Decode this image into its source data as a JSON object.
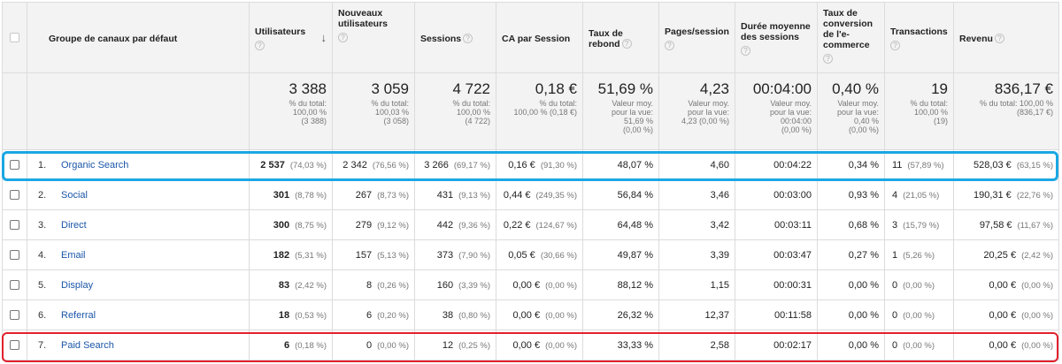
{
  "columns": {
    "dimension": "Groupe de canaux par défaut",
    "users": "Utilisateurs",
    "new_users": "Nouveaux utilisateurs",
    "sessions": "Sessions",
    "ca_session": "CA par Session",
    "bounce": "Taux de rebond",
    "pages": "Pages/session",
    "duration": "Durée moyenne des sessions",
    "conversion": "Taux de conversion de l'e-commerce",
    "transactions": "Transactions",
    "revenue": "Revenu"
  },
  "help_icon": "?",
  "sort_icon": "↓",
  "totals": {
    "users": {
      "value": "3 388",
      "sub": "% du total:\n100,00 %\n(3 388)"
    },
    "new_users": {
      "value": "3 059",
      "sub": "% du total:\n100,03 %\n(3 058)"
    },
    "sessions": {
      "value": "4 722",
      "sub": "% du total:\n100,00 %\n(4 722)"
    },
    "ca_session": {
      "value": "0,18 €",
      "sub": "% du total:\n100,00 % (0,18 €)"
    },
    "bounce": {
      "value": "51,69 %",
      "sub": "Valeur moy.\npour la vue:\n51,69 %\n(0,00 %)"
    },
    "pages": {
      "value": "4,23",
      "sub": "Valeur moy.\npour la vue:\n4,23 (0,00 %)"
    },
    "duration": {
      "value": "00:04:00",
      "sub": "Valeur moy.\npour la vue:\n00:04:00\n(0,00 %)"
    },
    "conversion": {
      "value": "0,40 %",
      "sub": "Valeur moy.\npour la vue:\n0,40 %\n(0,00 %)"
    },
    "transactions": {
      "value": "19",
      "sub": "% du total:\n100,00 %\n(19)"
    },
    "revenue": {
      "value": "836,17 €",
      "sub": "% du total: 100,00 %\n(836,17 €)"
    }
  },
  "rows": [
    {
      "rank": "1.",
      "channel": "Organic Search",
      "users": "2 537",
      "users_pct": "(74,03 %)",
      "new_users": "2 342",
      "new_users_pct": "(76,56 %)",
      "sessions": "3 266",
      "sessions_pct": "(69,17 %)",
      "ca": "0,16 €",
      "ca_pct": "(91,30 %)",
      "bounce": "48,07 %",
      "pages": "4,60",
      "duration": "00:04:22",
      "conversion": "0,34 %",
      "transactions": "11",
      "transactions_pct": "(57,89 %)",
      "revenue": "528,03 €",
      "revenue_pct": "(63,15 %)"
    },
    {
      "rank": "2.",
      "channel": "Social",
      "users": "301",
      "users_pct": "(8,78 %)",
      "new_users": "267",
      "new_users_pct": "(8,73 %)",
      "sessions": "431",
      "sessions_pct": "(9,13 %)",
      "ca": "0,44 €",
      "ca_pct": "(249,35 %)",
      "bounce": "56,84 %",
      "pages": "3,46",
      "duration": "00:03:00",
      "conversion": "0,93 %",
      "transactions": "4",
      "transactions_pct": "(21,05 %)",
      "revenue": "190,31 €",
      "revenue_pct": "(22,76 %)"
    },
    {
      "rank": "3.",
      "channel": "Direct",
      "users": "300",
      "users_pct": "(8,75 %)",
      "new_users": "279",
      "new_users_pct": "(9,12 %)",
      "sessions": "442",
      "sessions_pct": "(9,36 %)",
      "ca": "0,22 €",
      "ca_pct": "(124,67 %)",
      "bounce": "64,48 %",
      "pages": "3,42",
      "duration": "00:03:11",
      "conversion": "0,68 %",
      "transactions": "3",
      "transactions_pct": "(15,79 %)",
      "revenue": "97,58 €",
      "revenue_pct": "(11,67 %)"
    },
    {
      "rank": "4.",
      "channel": "Email",
      "users": "182",
      "users_pct": "(5,31 %)",
      "new_users": "157",
      "new_users_pct": "(5,13 %)",
      "sessions": "373",
      "sessions_pct": "(7,90 %)",
      "ca": "0,05 €",
      "ca_pct": "(30,66 %)",
      "bounce": "49,87 %",
      "pages": "3,39",
      "duration": "00:03:47",
      "conversion": "0,27 %",
      "transactions": "1",
      "transactions_pct": "(5,26 %)",
      "revenue": "20,25 €",
      "revenue_pct": "(2,42 %)"
    },
    {
      "rank": "5.",
      "channel": "Display",
      "users": "83",
      "users_pct": "(2,42 %)",
      "new_users": "8",
      "new_users_pct": "(0,26 %)",
      "sessions": "160",
      "sessions_pct": "(3,39 %)",
      "ca": "0,00 €",
      "ca_pct": "(0,00 %)",
      "bounce": "88,12 %",
      "pages": "1,15",
      "duration": "00:00:31",
      "conversion": "0,00 %",
      "transactions": "0",
      "transactions_pct": "(0,00 %)",
      "revenue": "0,00 €",
      "revenue_pct": "(0,00 %)"
    },
    {
      "rank": "6.",
      "channel": "Referral",
      "users": "18",
      "users_pct": "(0,53 %)",
      "new_users": "6",
      "new_users_pct": "(0,20 %)",
      "sessions": "38",
      "sessions_pct": "(0,80 %)",
      "ca": "0,00 €",
      "ca_pct": "(0,00 %)",
      "bounce": "26,32 %",
      "pages": "12,37",
      "duration": "00:11:58",
      "conversion": "0,00 %",
      "transactions": "0",
      "transactions_pct": "(0,00 %)",
      "revenue": "0,00 €",
      "revenue_pct": "(0,00 %)"
    },
    {
      "rank": "7.",
      "channel": "Paid Search",
      "users": "6",
      "users_pct": "(0,18 %)",
      "new_users": "0",
      "new_users_pct": "(0,00 %)",
      "sessions": "12",
      "sessions_pct": "(0,25 %)",
      "ca": "0,00 €",
      "ca_pct": "(0,00 %)",
      "bounce": "33,33 %",
      "pages": "2,58",
      "duration": "00:02:17",
      "conversion": "0,00 %",
      "transactions": "0",
      "transactions_pct": "(0,00 %)",
      "revenue": "0,00 €",
      "revenue_pct": "(0,00 %)"
    }
  ],
  "highlights": {
    "blue": "#1aa7e3",
    "red": "#e2202c"
  }
}
